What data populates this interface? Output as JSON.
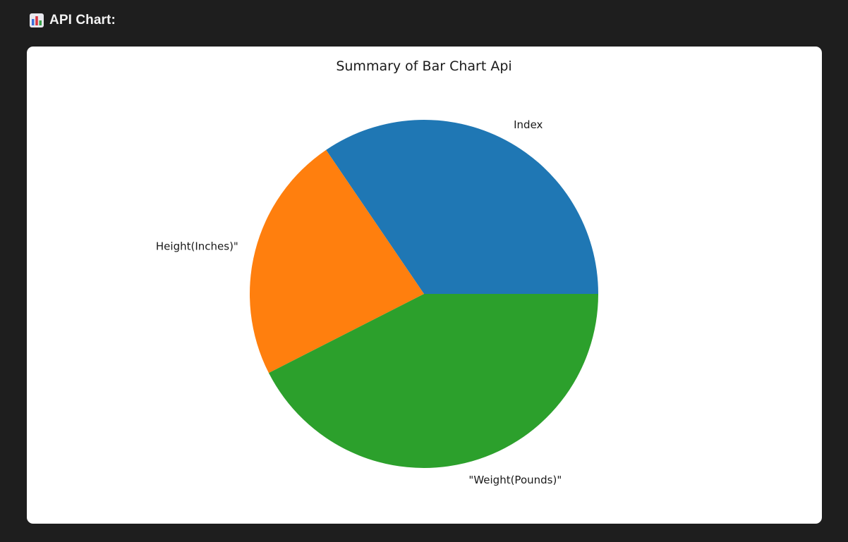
{
  "header": {
    "icon": "bar-chart-icon",
    "title": "API Chart:"
  },
  "chart_data": {
    "type": "pie",
    "title": "Summary of Bar Chart Api",
    "slices": [
      {
        "label": "Index",
        "value": 34.5,
        "color": "#1f77b4"
      },
      {
        "label": "Height(Inches)\"",
        "value": 23.0,
        "color": "#ff7f0e"
      },
      {
        "label": "\"Weight(Pounds)\"",
        "value": 42.5,
        "color": "#2ca02c"
      }
    ],
    "start_angle": 0,
    "direction": "counterclockwise",
    "legend": "none"
  },
  "colors": {
    "page_background": "#1e1e1e",
    "card_background": "#ffffff"
  }
}
